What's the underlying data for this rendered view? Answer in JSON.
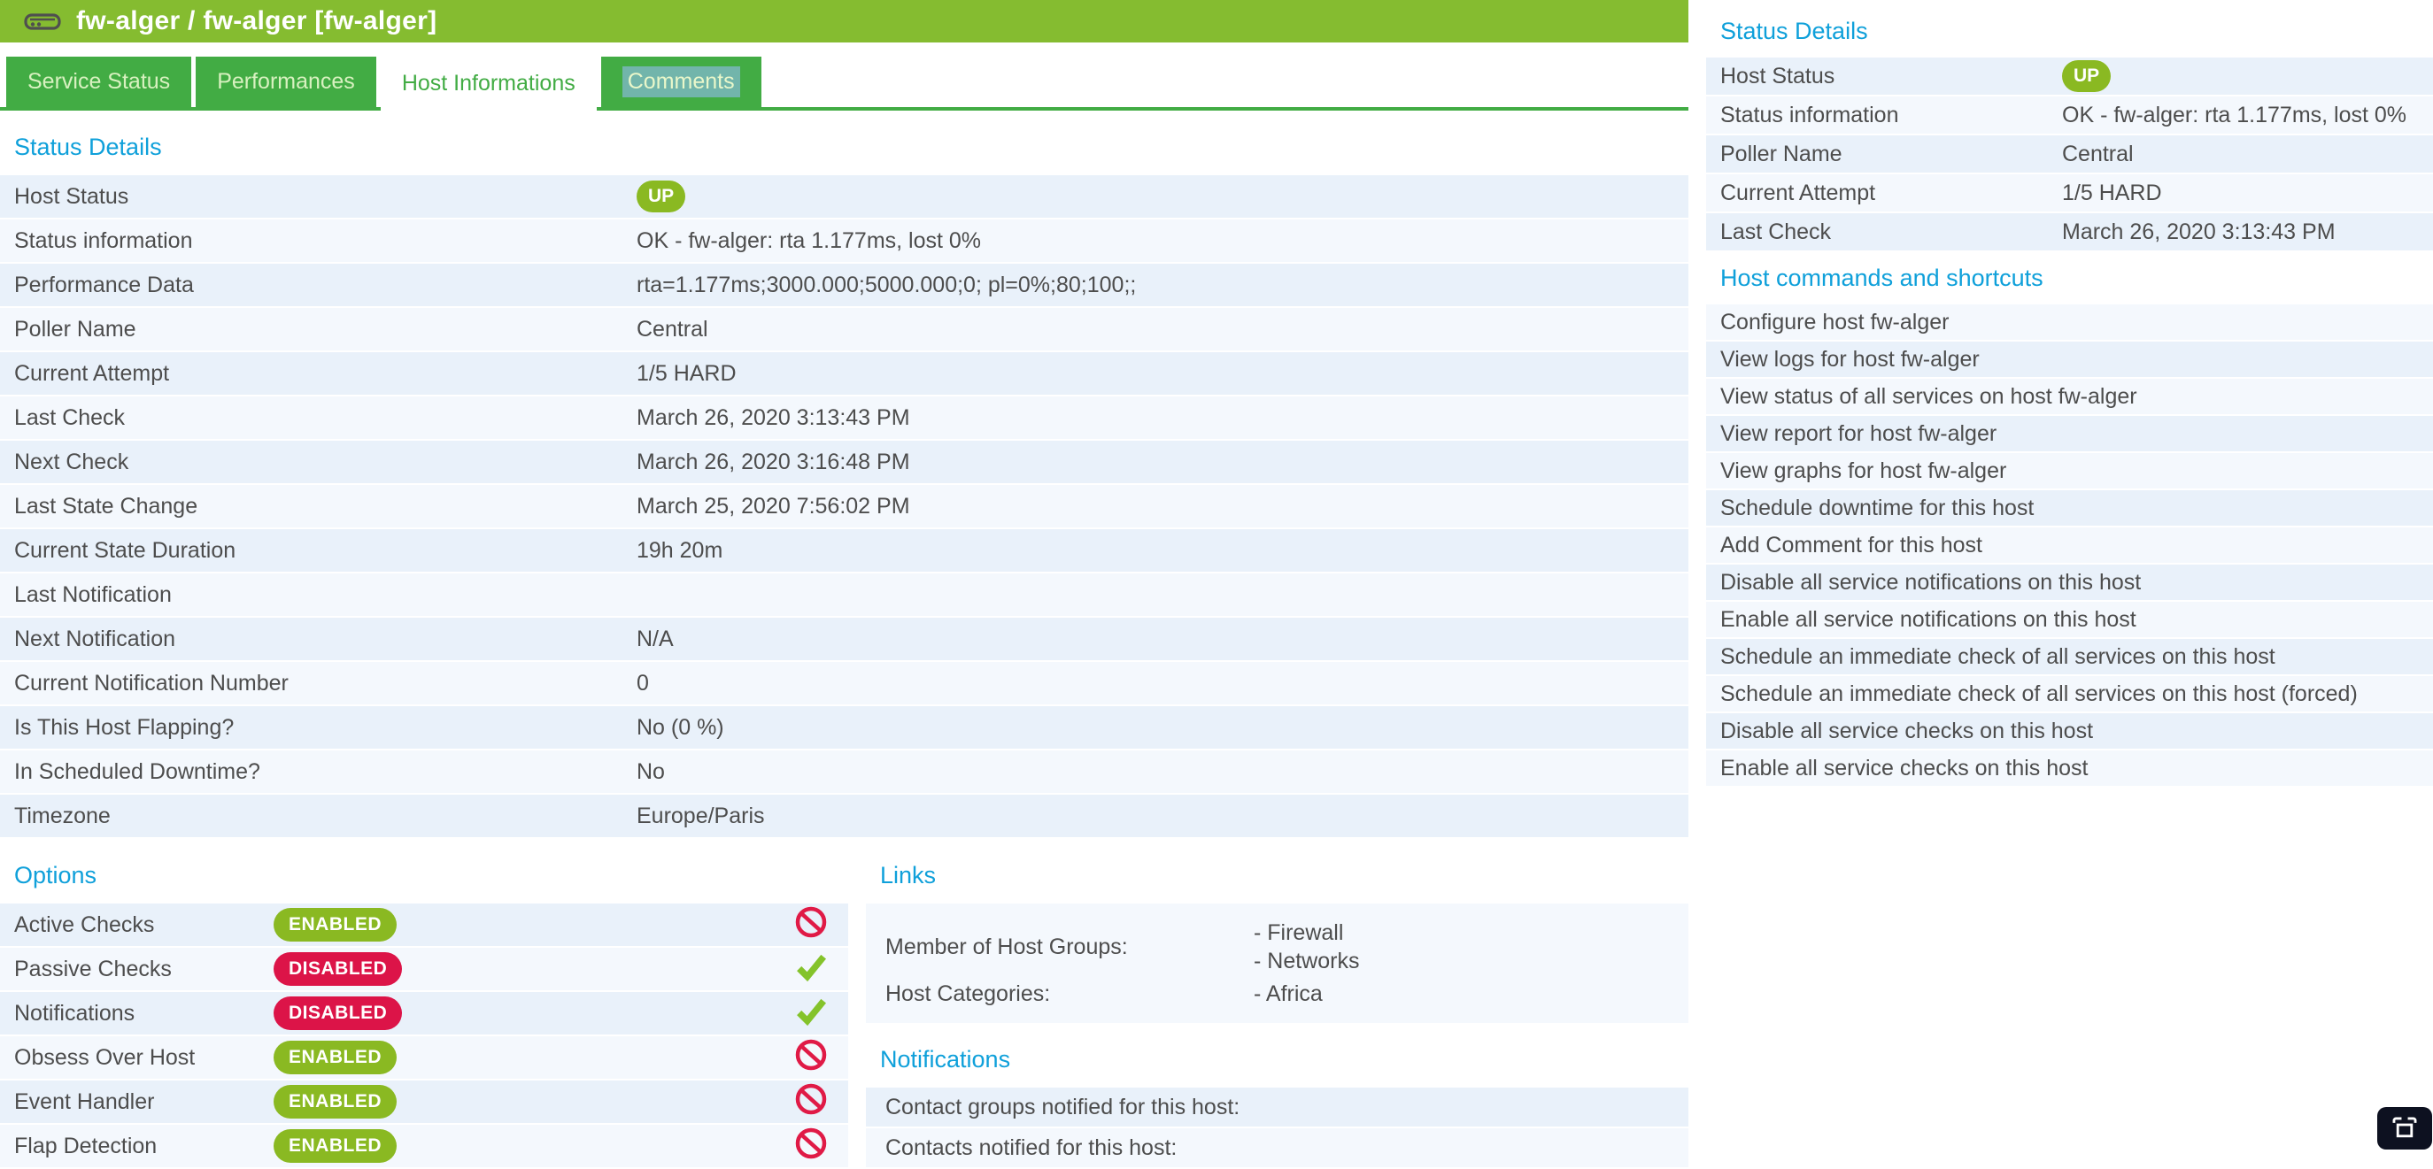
{
  "colors": {
    "banner_green": "#85bc30",
    "tab_green": "#42ac44",
    "heading_blue": "#0fa0da",
    "badge_green": "#8ab922",
    "badge_red": "#dc1448",
    "icon_block_red": "#e01a46",
    "icon_check_green": "#84c32b",
    "row_light": "#f4f8fd",
    "row_blue": "#e9f1fa",
    "selection_teal": "#72b5ab"
  },
  "host_banner": {
    "title": "fw-alger / fw-alger [fw-alger]"
  },
  "tabs": [
    {
      "label": "Service Status",
      "state": "inactive"
    },
    {
      "label": "Performances",
      "state": "inactive"
    },
    {
      "label": "Host Informations",
      "state": "active"
    },
    {
      "label": "Comments",
      "state": "inactive",
      "label_class": "text-selected"
    }
  ],
  "status_details": {
    "heading": "Status Details",
    "rows": [
      {
        "label": "Host Status",
        "badge": "UP"
      },
      {
        "label": "Status information",
        "value": "OK - fw-alger: rta 1.177ms, lost 0%"
      },
      {
        "label": "Performance Data",
        "value": "rta=1.177ms;3000.000;5000.000;0; pl=0%;80;100;;"
      },
      {
        "label": "Poller Name",
        "value": "Central"
      },
      {
        "label": "Current Attempt",
        "value": "1/5 HARD"
      },
      {
        "label": "Last Check",
        "value": "March 26, 2020 3:13:43 PM"
      },
      {
        "label": "Next Check",
        "value": "March 26, 2020 3:16:48 PM"
      },
      {
        "label": "Last State Change",
        "value": "March 25, 2020 7:56:02 PM"
      },
      {
        "label": "Current State Duration",
        "value": "19h 20m"
      },
      {
        "label": "Last Notification"
      },
      {
        "label": "Next Notification",
        "value": "N/A"
      },
      {
        "label": "Current Notification Number",
        "value": "0"
      },
      {
        "label": "Is This Host Flapping?",
        "value": "No (0 %)"
      },
      {
        "label": "In Scheduled Downtime?",
        "value": "No"
      },
      {
        "label": "Timezone",
        "value": "Europe/Paris"
      }
    ]
  },
  "options": {
    "heading": "Options",
    "rows": [
      {
        "label": "Active Checks",
        "pill": "ENABLED",
        "pill_color": "green",
        "icon": "block"
      },
      {
        "label": "Passive Checks",
        "pill": "DISABLED",
        "pill_color": "red",
        "icon": "check"
      },
      {
        "label": "Notifications",
        "pill": "DISABLED",
        "pill_color": "red",
        "icon": "check"
      },
      {
        "label": "Obsess Over Host",
        "pill": "ENABLED",
        "pill_color": "green",
        "icon": "block"
      },
      {
        "label": "Event Handler",
        "pill": "ENABLED",
        "pill_color": "green",
        "icon": "block"
      },
      {
        "label": "Flap Detection",
        "pill": "ENABLED",
        "pill_color": "green",
        "icon": "block"
      }
    ]
  },
  "links": {
    "heading": "Links",
    "rows": [
      {
        "label": "Member of Host Groups:",
        "values": [
          "- Firewall",
          "- Networks"
        ]
      },
      {
        "label": "Host Categories:",
        "values": [
          "- Africa"
        ]
      }
    ]
  },
  "notifications": {
    "heading": "Notifications",
    "rows": [
      {
        "label": "Contact groups notified for this host:"
      },
      {
        "label": "Contacts notified for this host:"
      }
    ]
  },
  "sidebar": {
    "status_details": {
      "heading": "Status Details",
      "rows": [
        {
          "label": "Host Status",
          "badge": "UP"
        },
        {
          "label": "Status information",
          "value": "OK - fw-alger: rta 1.177ms, lost 0%"
        },
        {
          "label": "Poller Name",
          "value": "Central"
        },
        {
          "label": "Current Attempt",
          "value": "1/5 HARD"
        },
        {
          "label": "Last Check",
          "value": "March 26, 2020 3:13:43 PM"
        }
      ]
    },
    "commands": {
      "heading": "Host commands and shortcuts",
      "items": [
        {
          "label": "Configure host fw-alger"
        },
        {
          "label": "View logs for host fw-alger"
        },
        {
          "label": "View status of all services on host fw-alger"
        },
        {
          "label": "View report for host fw-alger"
        },
        {
          "label": "View graphs for host fw-alger"
        },
        {
          "label": "Schedule downtime for this host"
        },
        {
          "label": "Add Comment for this host"
        },
        {
          "label": "Disable all service notifications on this host"
        },
        {
          "label": "Enable all service notifications on this host"
        },
        {
          "label": "Schedule an immediate check of all services on this host"
        },
        {
          "label": "Schedule an immediate check of all services on this host (forced)"
        },
        {
          "label": "Disable all service checks on this host"
        },
        {
          "label": "Enable all service checks on this host"
        }
      ]
    }
  }
}
